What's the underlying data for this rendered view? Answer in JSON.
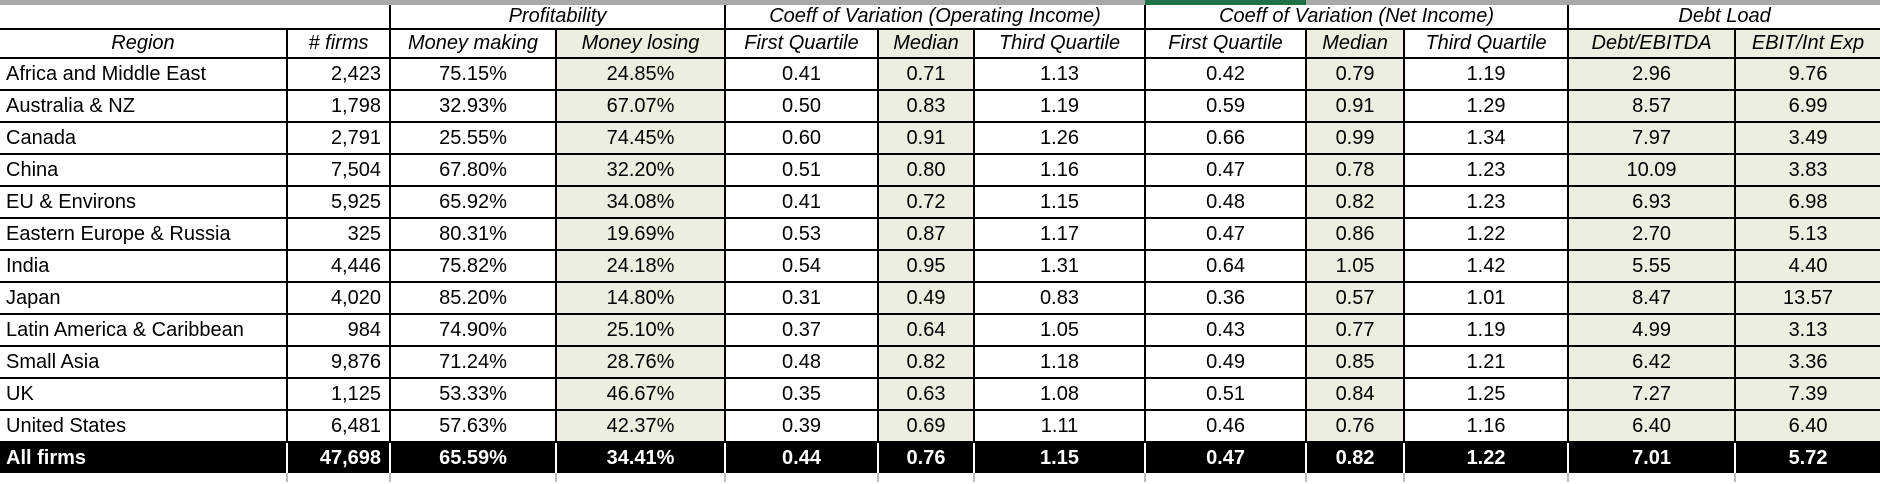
{
  "table": {
    "groups": [
      {
        "label": "",
        "span": 2
      },
      {
        "label": "Profitability",
        "span": 2
      },
      {
        "label": "Coeff of Variation (Operating Income)",
        "span": 3
      },
      {
        "label": "Coeff of Variation (Net Income)",
        "span": 3
      },
      {
        "label": "Debt Load",
        "span": 2
      }
    ],
    "columns": [
      "Region",
      "# firms",
      "Money making",
      "Money losing",
      "First Quartile",
      "Median",
      "Third Quartile",
      "First Quartile",
      "Median",
      "Third Quartile",
      "Debt/EBITDA",
      "EBIT/Int Exp"
    ],
    "rows": [
      [
        "Africa and Middle East",
        "2,423",
        "75.15%",
        "24.85%",
        "0.41",
        "0.71",
        "1.13",
        "0.42",
        "0.79",
        "1.19",
        "2.96",
        "9.76"
      ],
      [
        "Australia & NZ",
        "1,798",
        "32.93%",
        "67.07%",
        "0.50",
        "0.83",
        "1.19",
        "0.59",
        "0.91",
        "1.29",
        "8.57",
        "6.99"
      ],
      [
        "Canada",
        "2,791",
        "25.55%",
        "74.45%",
        "0.60",
        "0.91",
        "1.26",
        "0.66",
        "0.99",
        "1.34",
        "7.97",
        "3.49"
      ],
      [
        "China",
        "7,504",
        "67.80%",
        "32.20%",
        "0.51",
        "0.80",
        "1.16",
        "0.47",
        "0.78",
        "1.23",
        "10.09",
        "3.83"
      ],
      [
        "EU & Environs",
        "5,925",
        "65.92%",
        "34.08%",
        "0.41",
        "0.72",
        "1.15",
        "0.48",
        "0.82",
        "1.23",
        "6.93",
        "6.98"
      ],
      [
        "Eastern Europe & Russia",
        "325",
        "80.31%",
        "19.69%",
        "0.53",
        "0.87",
        "1.17",
        "0.47",
        "0.86",
        "1.22",
        "2.70",
        "5.13"
      ],
      [
        "India",
        "4,446",
        "75.82%",
        "24.18%",
        "0.54",
        "0.95",
        "1.31",
        "0.64",
        "1.05",
        "1.42",
        "5.55",
        "4.40"
      ],
      [
        "Japan",
        "4,020",
        "85.20%",
        "14.80%",
        "0.31",
        "0.49",
        "0.83",
        "0.36",
        "0.57",
        "1.01",
        "8.47",
        "13.57"
      ],
      [
        "Latin America & Caribbean",
        "984",
        "74.90%",
        "25.10%",
        "0.37",
        "0.64",
        "1.05",
        "0.43",
        "0.77",
        "1.19",
        "4.99",
        "3.13"
      ],
      [
        "Small Asia",
        "9,876",
        "71.24%",
        "28.76%",
        "0.48",
        "0.82",
        "1.18",
        "0.49",
        "0.85",
        "1.21",
        "6.42",
        "3.36"
      ],
      [
        "UK",
        "1,125",
        "53.33%",
        "46.67%",
        "0.35",
        "0.63",
        "1.08",
        "0.51",
        "0.84",
        "1.25",
        "7.27",
        "7.39"
      ],
      [
        "United States",
        "6,481",
        "57.63%",
        "42.37%",
        "0.39",
        "0.69",
        "1.11",
        "0.46",
        "0.76",
        "1.16",
        "6.40",
        "6.40"
      ]
    ],
    "total_row": [
      "All firms",
      "47,698",
      "65.59%",
      "34.41%",
      "0.44",
      "0.76",
      "1.15",
      "0.47",
      "0.82",
      "1.22",
      "7.01",
      "5.72"
    ],
    "colors": {
      "shaded_column_bg": "#eeede0",
      "total_row_bg": "#000000",
      "total_row_text": "#ffffff",
      "accent_green": "#1e7145",
      "top_strip_gray": "#a9a9a9"
    }
  }
}
